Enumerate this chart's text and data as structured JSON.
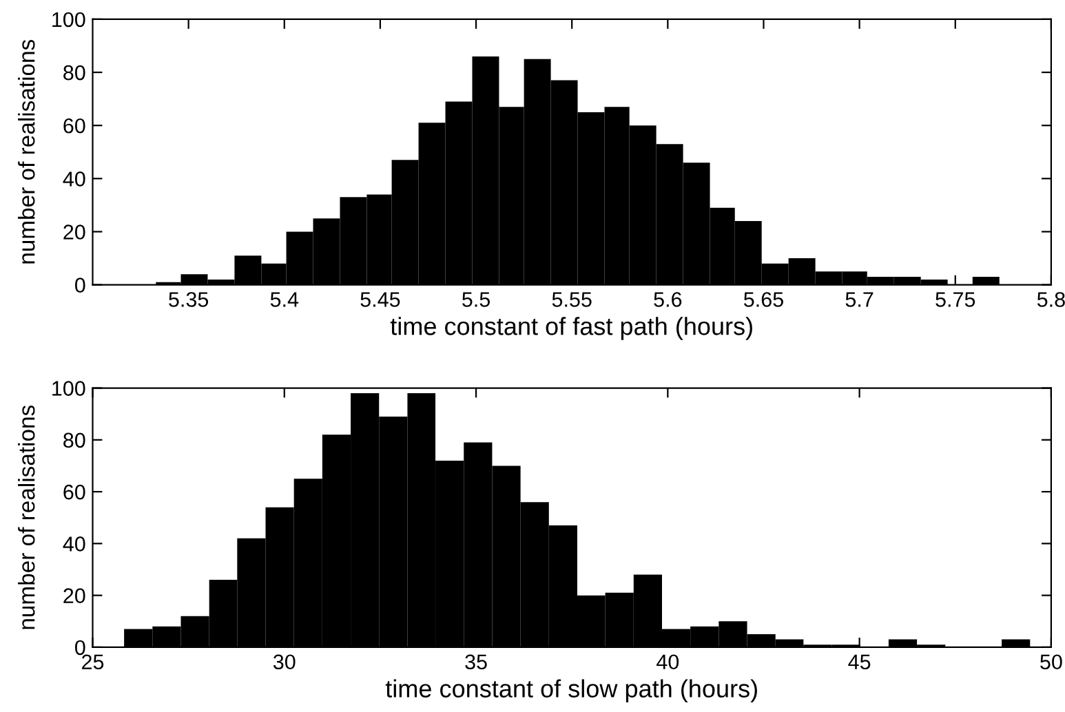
{
  "chart_data": [
    {
      "type": "histogram",
      "xlabel": "time constant of fast path (hours)",
      "ylabel": "number of realisations",
      "color": "#000000",
      "bins": [
        5.333,
        5.346,
        5.36,
        5.374,
        5.388,
        5.401,
        5.415,
        5.429,
        5.443,
        5.456,
        5.47,
        5.484,
        5.498,
        5.512,
        5.525,
        5.539,
        5.553,
        5.567,
        5.58,
        5.594,
        5.608,
        5.622,
        5.635,
        5.649,
        5.663,
        5.677,
        5.691,
        5.704,
        5.718,
        5.732,
        5.746,
        5.759,
        5.773
      ],
      "values": [
        1,
        4,
        2,
        11,
        8,
        20,
        25,
        33,
        34,
        47,
        61,
        69,
        86,
        67,
        85,
        77,
        65,
        67,
        60,
        53,
        46,
        29,
        24,
        8,
        10,
        5,
        5,
        3,
        3,
        2,
        0,
        3
      ],
      "xlim": [
        5.3,
        5.8
      ],
      "xticks": [
        5.35,
        5.4,
        5.45,
        5.5,
        5.55,
        5.6,
        5.65,
        5.7,
        5.75,
        5.8
      ],
      "ylim": [
        0,
        100
      ],
      "yticks": [
        0,
        20,
        40,
        60,
        80,
        100
      ]
    },
    {
      "type": "histogram",
      "xlabel": "time constant of slow path (hours)",
      "ylabel": "number of realisations",
      "color": "#000000",
      "bins": [
        25.82,
        26.56,
        27.3,
        28.04,
        28.77,
        29.51,
        30.25,
        30.99,
        31.73,
        32.47,
        33.21,
        33.94,
        34.68,
        35.42,
        36.16,
        36.9,
        37.64,
        38.37,
        39.11,
        39.85,
        40.59,
        41.33,
        42.07,
        42.81,
        43.54,
        44.28,
        45.02,
        45.76,
        46.5,
        47.24,
        48.71,
        49.45
      ],
      "values": [
        7,
        8,
        12,
        26,
        42,
        54,
        65,
        82,
        98,
        89,
        98,
        72,
        79,
        70,
        56,
        47,
        20,
        21,
        28,
        7,
        8,
        10,
        5,
        3,
        1,
        1,
        0,
        3,
        1,
        0,
        3
      ],
      "xlim": [
        25,
        50
      ],
      "xticks": [
        25,
        30,
        35,
        40,
        45,
        50
      ],
      "ylim": [
        0,
        100
      ],
      "yticks": [
        0,
        20,
        40,
        60,
        80,
        100
      ]
    }
  ]
}
